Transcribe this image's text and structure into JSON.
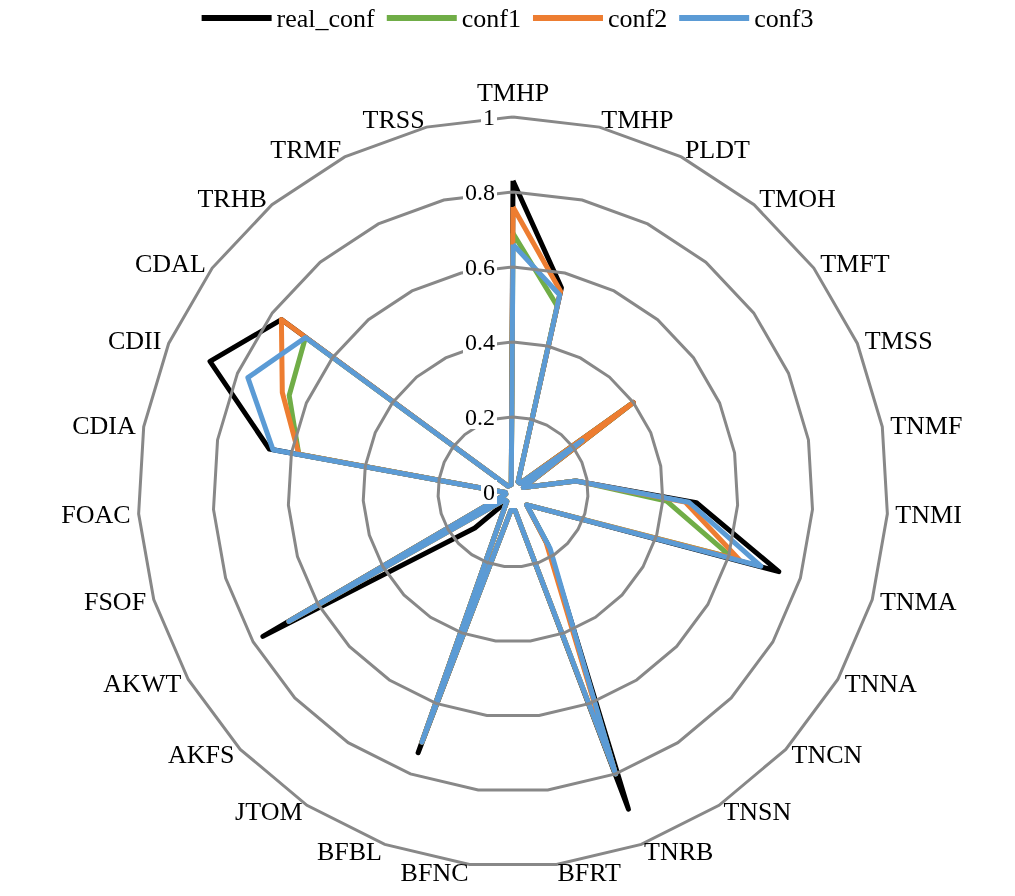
{
  "chart_data": {
    "type": "radar",
    "categories": [
      "TMHP",
      "TMHP",
      "PLDT",
      "TMOH",
      "TMFT",
      "TMSS",
      "TNMF",
      "TNMI",
      "TNMA",
      "TNNA",
      "TNCN",
      "TNSN",
      "TNRB",
      "BFRT",
      "BFNC",
      "BFBL",
      "JTOM",
      "AKFS",
      "AKWT",
      "FSOF",
      "FOAC",
      "CDIA",
      "CDII",
      "CDAL",
      "TRHB",
      "TRMF",
      "TRSS"
    ],
    "series": [
      {
        "name": "real_conf",
        "color": "#000000",
        "values": [
          0.83,
          0.56,
          0.03,
          0.03,
          0.4,
          0.03,
          0.17,
          0.49,
          0.74,
          0.09,
          0.05,
          0.17,
          0.9,
          0.05,
          0.05,
          0.74,
          0.03,
          0.14,
          0.77,
          0.02,
          0.02,
          0.66,
          0.88,
          0.77,
          0.02,
          0.02,
          0.02
        ]
      },
      {
        "name": "conf1",
        "color": "#70ad47",
        "values": [
          0.69,
          0.51,
          0.03,
          0.03,
          0.39,
          0.03,
          0.17,
          0.41,
          0.61,
          0.09,
          0.05,
          0.17,
          0.8,
          0.05,
          0.05,
          0.71,
          0.03,
          0.03,
          0.69,
          0.02,
          0.02,
          0.58,
          0.65,
          0.69,
          0.02,
          0.02,
          0.02
        ]
      },
      {
        "name": "conf2",
        "color": "#ed7d31",
        "values": [
          0.76,
          0.55,
          0.03,
          0.03,
          0.4,
          0.03,
          0.17,
          0.46,
          0.63,
          0.09,
          0.05,
          0.16,
          0.8,
          0.05,
          0.05,
          0.71,
          0.03,
          0.03,
          0.69,
          0.02,
          0.02,
          0.58,
          0.67,
          0.77,
          0.02,
          0.02,
          0.02
        ]
      },
      {
        "name": "conf3",
        "color": "#5b9bd5",
        "values": [
          0.66,
          0.54,
          0.03,
          0.03,
          0.23,
          0.03,
          0.17,
          0.47,
          0.69,
          0.09,
          0.05,
          0.18,
          0.8,
          0.05,
          0.05,
          0.71,
          0.03,
          0.03,
          0.69,
          0.02,
          0.02,
          0.65,
          0.77,
          0.69,
          0.02,
          0.02,
          0.02
        ]
      }
    ],
    "ylim": [
      0,
      1
    ],
    "yticks": [
      0,
      0.2,
      0.4,
      0.6,
      0.8,
      1
    ],
    "legend": "top",
    "grid": true
  }
}
